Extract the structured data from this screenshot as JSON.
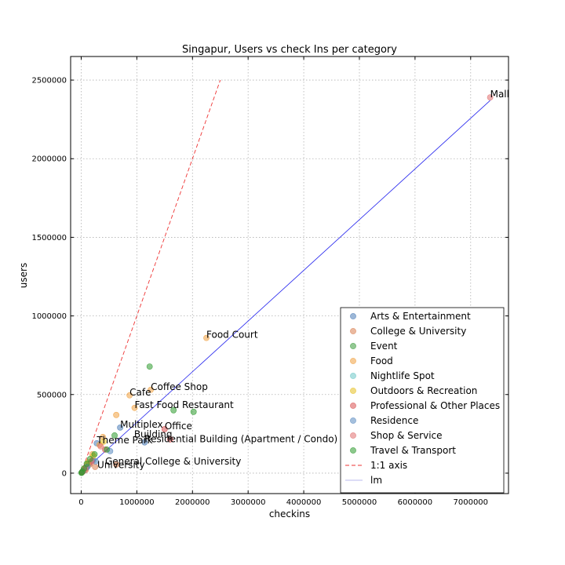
{
  "chart_data": {
    "type": "scatter",
    "title": "Singapur, Users vs check Ins per category",
    "xlabel": "checkins",
    "ylabel": "users",
    "xlim": [
      -190000,
      7680000
    ],
    "ylim": [
      -130000,
      2650000
    ],
    "xticks": [
      0,
      1000000,
      2000000,
      3000000,
      4000000,
      5000000,
      6000000,
      7000000
    ],
    "xtick_labels": [
      "0",
      "1000000",
      "2000000",
      "3000000",
      "4000000",
      "5000000",
      "6000000",
      "7000000"
    ],
    "yticks": [
      0,
      500000,
      1000000,
      1500000,
      2000000,
      2500000
    ],
    "ytick_labels": [
      "0",
      "500000",
      "1000000",
      "1500000",
      "2000000",
      "2500000"
    ],
    "grid": true,
    "legend_position": "lower-right",
    "series": [
      {
        "name": "Arts & Entertainment",
        "color": "#4a7bb7",
        "points": [
          [
            700000,
            290000
          ],
          [
            1140000,
            196000
          ],
          [
            280000,
            190000
          ],
          [
            140000,
            60000
          ],
          [
            60000,
            25000
          ],
          [
            30000,
            12000
          ],
          [
            10000,
            4000
          ]
        ]
      },
      {
        "name": "College & University",
        "color": "#d98050",
        "points": [
          [
            630000,
            55000
          ],
          [
            250000,
            40000
          ],
          [
            150000,
            55000
          ],
          [
            80000,
            20000
          ],
          [
            40000,
            12000
          ],
          [
            15000,
            5000
          ]
        ]
      },
      {
        "name": "Event",
        "color": "#3a9a3a",
        "points": [
          [
            20000,
            8000
          ],
          [
            8000,
            3000
          ]
        ]
      },
      {
        "name": "Food",
        "color": "#f0a040",
        "points": [
          [
            2250000,
            860000
          ],
          [
            1250000,
            530000
          ],
          [
            870000,
            495000
          ],
          [
            960000,
            415000
          ],
          [
            630000,
            370000
          ],
          [
            390000,
            230000
          ],
          [
            330000,
            180000
          ],
          [
            200000,
            120000
          ],
          [
            120000,
            70000
          ],
          [
            60000,
            30000
          ],
          [
            20000,
            9000
          ]
        ]
      },
      {
        "name": "Nightlife Spot",
        "color": "#6cc6c6",
        "points": [
          [
            220000,
            80000
          ],
          [
            100000,
            35000
          ],
          [
            40000,
            15000
          ]
        ]
      },
      {
        "name": "Outdoors & Recreation",
        "color": "#e6c020",
        "points": [
          [
            400000,
            200000
          ],
          [
            220000,
            110000
          ],
          [
            120000,
            60000
          ],
          [
            50000,
            20000
          ]
        ]
      },
      {
        "name": "Professional & Other Places",
        "color": "#d85050",
        "points": [
          [
            1500000,
            280000
          ],
          [
            1600000,
            215000
          ],
          [
            430000,
            150000
          ],
          [
            200000,
            80000
          ],
          [
            90000,
            35000
          ],
          [
            30000,
            12000
          ]
        ]
      },
      {
        "name": "Residence",
        "color": "#5a8ac0",
        "points": [
          [
            520000,
            140000
          ],
          [
            260000,
            75000
          ],
          [
            110000,
            40000
          ],
          [
            40000,
            15000
          ]
        ]
      },
      {
        "name": "Shop & Service",
        "color": "#e07070",
        "points": [
          [
            7350000,
            2390000
          ],
          [
            350000,
            170000
          ],
          [
            180000,
            70000
          ],
          [
            70000,
            25000
          ],
          [
            20000,
            8000
          ]
        ]
      },
      {
        "name": "Travel & Transport",
        "color": "#2e9a2e",
        "points": [
          [
            1230000,
            678000
          ],
          [
            1660000,
            400000
          ],
          [
            2020000,
            390000
          ],
          [
            600000,
            240000
          ],
          [
            460000,
            150000
          ],
          [
            240000,
            120000
          ],
          [
            160000,
            90000
          ],
          [
            100000,
            60000
          ],
          [
            50000,
            30000
          ],
          [
            20000,
            10000
          ],
          [
            5000,
            2000
          ]
        ]
      }
    ],
    "reference_line": {
      "name": "1:1 axis",
      "color": "#ee3333",
      "points": [
        [
          0,
          0
        ],
        [
          2500000,
          2500000
        ]
      ]
    },
    "fit_line": {
      "name": "lm",
      "color": "#2222ee",
      "points": [
        [
          0,
          0
        ],
        [
          7350000,
          2370000
        ]
      ]
    },
    "annotations": [
      {
        "text": "Mall",
        "x": 7350000,
        "y": 2390000
      },
      {
        "text": "Food Court",
        "x": 2250000,
        "y": 860000
      },
      {
        "text": "Coffee Shop",
        "x": 1250000,
        "y": 530000
      },
      {
        "text": "Cafe",
        "x": 870000,
        "y": 495000
      },
      {
        "text": "Fast Food Restaurant",
        "x": 960000,
        "y": 415000
      },
      {
        "text": "Multiplex",
        "x": 700000,
        "y": 290000
      },
      {
        "text": "Office",
        "x": 1500000,
        "y": 280000
      },
      {
        "text": "Building",
        "x": 950000,
        "y": 226000
      },
      {
        "text": "Theme Park",
        "x": 280000,
        "y": 190000
      },
      {
        "text": "Residential Building (Apartment / Condo)",
        "x": 1140000,
        "y": 196000
      },
      {
        "text": "General College & University",
        "x": 430000,
        "y": 54000
      },
      {
        "text": "University",
        "x": 290000,
        "y": 33000
      }
    ]
  }
}
